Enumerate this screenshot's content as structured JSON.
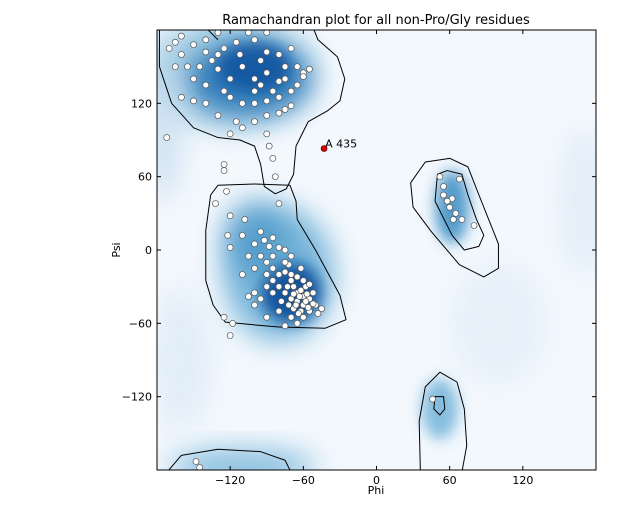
{
  "chart_data": {
    "type": "scatter",
    "title": "Ramachandran plot for all non-Pro/Gly residues",
    "xlabel": "Phi",
    "ylabel": "Psi",
    "xlim": [
      -180,
      180
    ],
    "ylim": [
      -180,
      180
    ],
    "xticks": [
      -120,
      -60,
      0,
      60,
      120
    ],
    "yticks": [
      -120,
      -60,
      0,
      60,
      120
    ],
    "grid": false,
    "colors": {
      "density": "#08519c",
      "points": "#ffffff",
      "outlier": "#e00000",
      "contour": "#000000"
    },
    "outliers": [
      {
        "label": "A 435",
        "phi": -43,
        "psi": 83
      }
    ],
    "points": [
      [
        -170,
        165
      ],
      [
        -165,
        170
      ],
      [
        -160,
        160
      ],
      [
        -150,
        168
      ],
      [
        -140,
        172
      ],
      [
        -130,
        160
      ],
      [
        -125,
        165
      ],
      [
        -115,
        170
      ],
      [
        -100,
        172
      ],
      [
        -90,
        162
      ],
      [
        -80,
        160
      ],
      [
        -70,
        165
      ],
      [
        -65,
        150
      ],
      [
        -60,
        145
      ],
      [
        -55,
        148
      ],
      [
        -150,
        140
      ],
      [
        -140,
        135
      ],
      [
        -130,
        148
      ],
      [
        -120,
        140
      ],
      [
        -110,
        150
      ],
      [
        -100,
        140
      ],
      [
        -95,
        135
      ],
      [
        -90,
        145
      ],
      [
        -85,
        130
      ],
      [
        -80,
        138
      ],
      [
        -75,
        140
      ],
      [
        -70,
        130
      ],
      [
        -65,
        135
      ],
      [
        -60,
        142
      ],
      [
        -120,
        125
      ],
      [
        -110,
        120
      ],
      [
        -100,
        120
      ],
      [
        -90,
        122
      ],
      [
        -80,
        125
      ],
      [
        -70,
        118
      ],
      [
        -140,
        120
      ],
      [
        -150,
        122
      ],
      [
        -160,
        125
      ],
      [
        -130,
        110
      ],
      [
        -115,
        105
      ],
      [
        -100,
        105
      ],
      [
        -90,
        110
      ],
      [
        -80,
        112
      ],
      [
        -75,
        115
      ],
      [
        -110,
        100
      ],
      [
        -100,
        130
      ],
      [
        -125,
        130
      ],
      [
        -135,
        155
      ],
      [
        -145,
        150
      ],
      [
        -155,
        150
      ],
      [
        -165,
        150
      ],
      [
        -172,
        92
      ],
      [
        -120,
        95
      ],
      [
        -90,
        95
      ],
      [
        -88,
        85
      ],
      [
        -85,
        75
      ],
      [
        -83,
        60
      ],
      [
        -125,
        70
      ],
      [
        -125,
        65
      ],
      [
        -105,
        178
      ],
      [
        -90,
        178
      ],
      [
        -130,
        178
      ],
      [
        -160,
        175
      ],
      [
        -112,
        160
      ],
      [
        -95,
        155
      ],
      [
        -75,
        150
      ],
      [
        -140,
        162
      ],
      [
        -132,
        38
      ],
      [
        -123,
        48
      ],
      [
        -120,
        28
      ],
      [
        -108,
        25
      ],
      [
        -80,
        38
      ],
      [
        -122,
        12
      ],
      [
        -110,
        12
      ],
      [
        -120,
        2
      ],
      [
        -100,
        5
      ],
      [
        -85,
        10
      ],
      [
        -95,
        -5
      ],
      [
        -90,
        -10
      ],
      [
        -85,
        -15
      ],
      [
        -80,
        -20
      ],
      [
        -75,
        -18
      ],
      [
        -70,
        -25
      ],
      [
        -65,
        -22
      ],
      [
        -95,
        15
      ],
      [
        -92,
        8
      ],
      [
        -88,
        3
      ],
      [
        -80,
        2
      ],
      [
        -75,
        0
      ],
      [
        -70,
        -5
      ],
      [
        -72,
        -12
      ],
      [
        -68,
        -30
      ],
      [
        -65,
        -35
      ],
      [
        -60,
        -38
      ],
      [
        -55,
        -40
      ],
      [
        -60,
        -45
      ],
      [
        -65,
        -42
      ],
      [
        -70,
        -40
      ],
      [
        -75,
        -35
      ],
      [
        -50,
        -45
      ],
      [
        -55,
        -50
      ],
      [
        -62,
        -50
      ],
      [
        -68,
        -48
      ],
      [
        -72,
        -45
      ],
      [
        -78,
        -42
      ],
      [
        -80,
        -30
      ],
      [
        -85,
        -35
      ],
      [
        -90,
        -30
      ],
      [
        -100,
        -35
      ],
      [
        -105,
        -38
      ],
      [
        -95,
        -40
      ],
      [
        -58,
        -30
      ],
      [
        -48,
        -52
      ],
      [
        -45,
        -48
      ],
      [
        -52,
        -35
      ],
      [
        -60,
        -55
      ],
      [
        -65,
        -60
      ],
      [
        -70,
        -55
      ],
      [
        -80,
        -50
      ],
      [
        -85,
        -25
      ],
      [
        -90,
        -20
      ],
      [
        -100,
        -15
      ],
      [
        -105,
        -5
      ],
      [
        -110,
        -20
      ],
      [
        -125,
        -55
      ],
      [
        -118,
        -60
      ],
      [
        -120,
        -70
      ],
      [
        -90,
        -55
      ],
      [
        -75,
        -62
      ],
      [
        -100,
        -45
      ],
      [
        -60,
        -25
      ],
      [
        -55,
        -28
      ],
      [
        -70,
        -20
      ],
      [
        -62,
        -15
      ],
      [
        -75,
        -10
      ],
      [
        -85,
        -5
      ],
      [
        -63,
        -38
      ],
      [
        -58,
        -42
      ],
      [
        -66,
        -45
      ],
      [
        -52,
        -44
      ],
      [
        -57,
        -36
      ],
      [
        -62,
        -33
      ],
      [
        -68,
        -36
      ],
      [
        -73,
        -30
      ],
      [
        -64,
        -52
      ],
      [
        -56,
        -47
      ],
      [
        62,
        42
      ],
      [
        55,
        45
      ],
      [
        58,
        40
      ],
      [
        52,
        60
      ],
      [
        68,
        58
      ],
      [
        60,
        35
      ],
      [
        65,
        30
      ],
      [
        70,
        25
      ],
      [
        63,
        25
      ],
      [
        80,
        20
      ],
      [
        55,
        52
      ],
      [
        46,
        -122
      ],
      [
        -148,
        -173
      ],
      [
        -145,
        -178
      ]
    ]
  }
}
